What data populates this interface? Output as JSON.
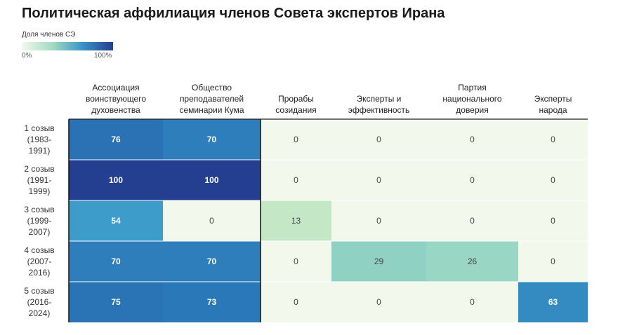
{
  "chart_data": {
    "type": "heatmap",
    "title": "Политическая аффилиация членов Совета экспертов Ирана",
    "legend": {
      "title": "Доля членов СЭ",
      "min_label": "0%",
      "max_label": "100%",
      "range": [
        0,
        100
      ]
    },
    "columns": [
      [
        "Ассоциация",
        "воинствующего",
        "духовенства"
      ],
      [
        "Общество",
        "преподавателей",
        "семинарии Кума"
      ],
      [
        "Прорабы",
        "созидания"
      ],
      [
        "Эксперты и",
        "эффективность"
      ],
      [
        "Партия",
        "национального",
        "доверия"
      ],
      [
        "Эксперты",
        "народа"
      ]
    ],
    "rows": [
      [
        "1 созыв",
        "(1983-",
        "1991)"
      ],
      [
        "2 созыв",
        "(1991-",
        "1999)"
      ],
      [
        "3 созыв",
        "(1999-",
        "2007)"
      ],
      [
        "4 созыв",
        "(2007-",
        "2016)"
      ],
      [
        "5 созыв",
        "(2016-",
        "2024)"
      ]
    ],
    "values": [
      [
        76,
        70,
        0,
        0,
        0,
        0
      ],
      [
        100,
        100,
        0,
        0,
        0,
        0
      ],
      [
        54,
        0,
        13,
        0,
        0,
        0
      ],
      [
        70,
        70,
        0,
        29,
        26,
        0
      ],
      [
        75,
        73,
        0,
        0,
        0,
        63
      ]
    ],
    "colors": [
      "#f2f9ec",
      "#c4e8c5",
      "#8fd2c4",
      "#3a9ac9",
      "#2b78b8",
      "#243f8f"
    ]
  }
}
